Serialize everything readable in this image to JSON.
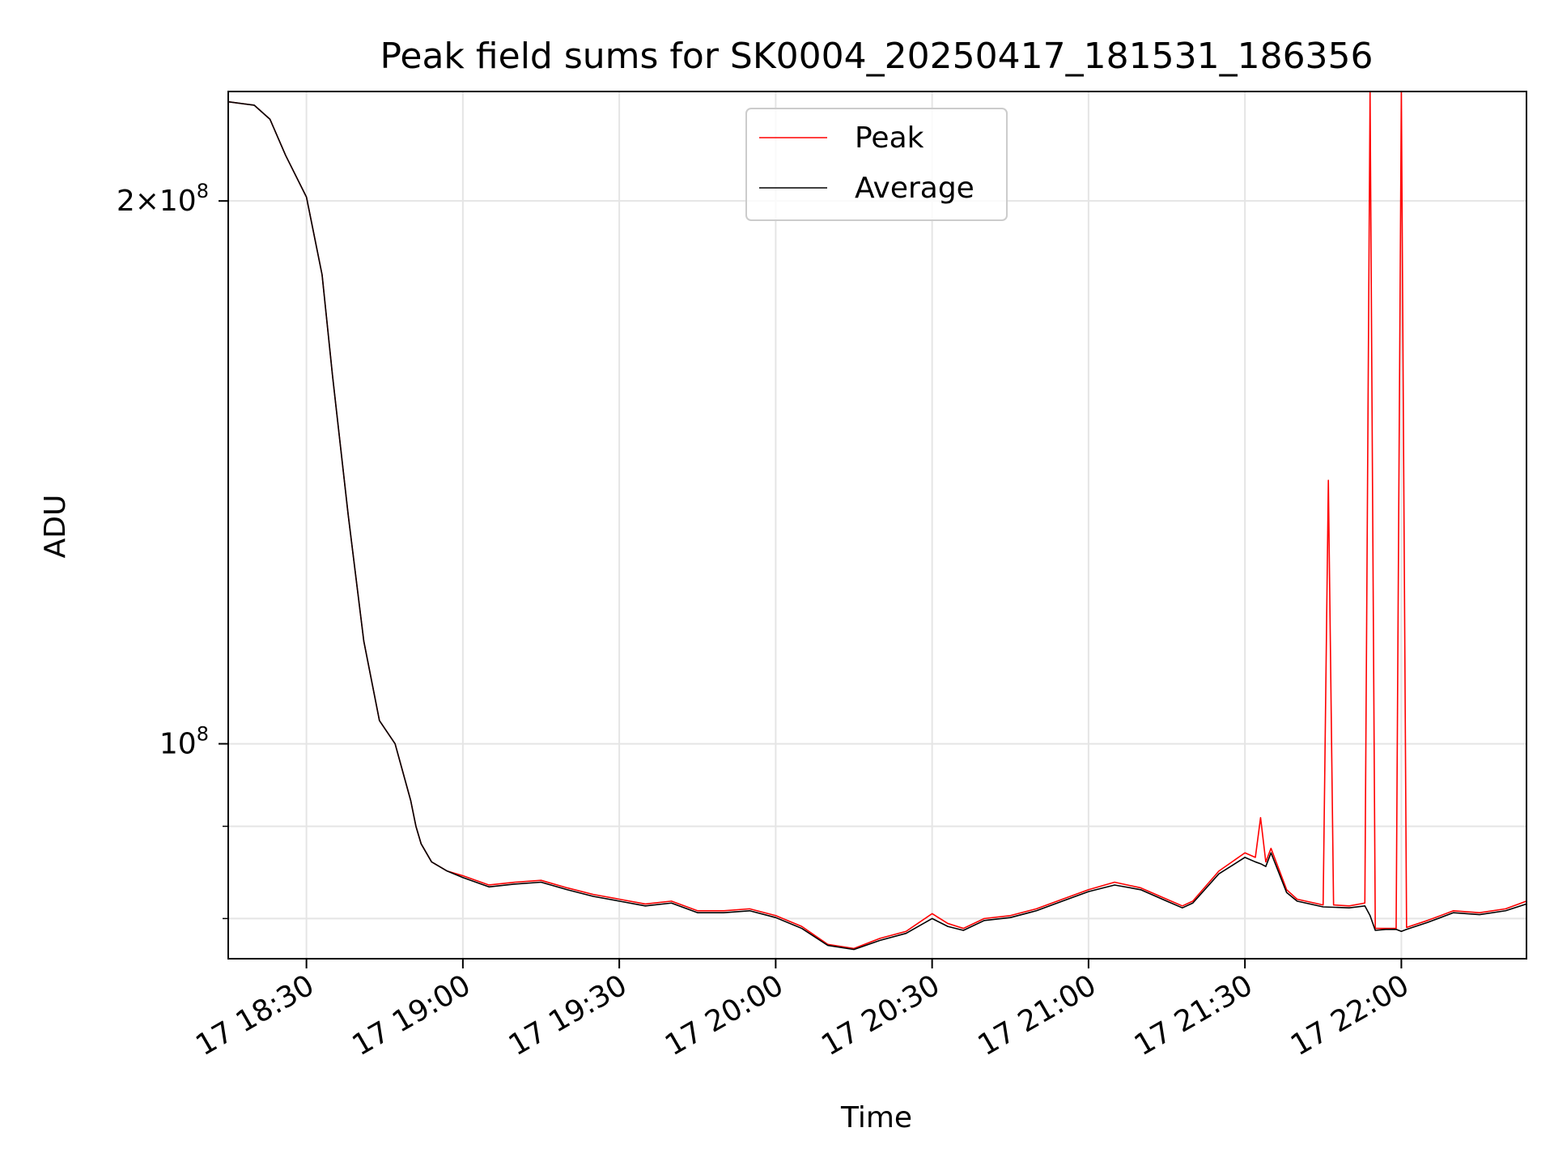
{
  "chart_data": {
    "type": "line",
    "title": "Peak field sums for SK0004_20250417_181531_186356",
    "xlabel": "Time",
    "ylabel": "ADU",
    "y_scale": "log",
    "grid": true,
    "legend_placement": "upper center",
    "xlim": [
      "2025-04-17 18:15",
      "2025-04-17 22:24"
    ],
    "ylim": [
      76000000,
      230000000
    ],
    "x_ticks": [
      "17 18:30",
      "17 19:00",
      "17 19:30",
      "17 20:00",
      "17 20:30",
      "17 21:00",
      "17 21:30",
      "17 22:00"
    ],
    "y_ticks": [
      {
        "value": 100000000,
        "label": "10^8"
      },
      {
        "value": 200000000,
        "label": "2×10^8"
      }
    ],
    "y_minor_ticks": [
      80000000,
      90000000
    ],
    "colors": {
      "Peak": "#ff0000",
      "Average": "#000000"
    },
    "series": [
      {
        "name": "Peak",
        "x": [
          "18:15",
          "18:20",
          "18:23",
          "18:26",
          "18:30",
          "18:33",
          "18:35",
          "18:38",
          "18:41",
          "18:44",
          "18:47",
          "18:50",
          "18:51",
          "18:52",
          "18:54",
          "18:57",
          "19:00",
          "19:05",
          "19:10",
          "19:15",
          "19:20",
          "19:25",
          "19:30",
          "19:35",
          "19:40",
          "19:45",
          "19:50",
          "19:55",
          "20:00",
          "20:05",
          "20:10",
          "20:15",
          "20:20",
          "20:25",
          "20:30",
          "20:33",
          "20:36",
          "20:40",
          "20:45",
          "20:50",
          "20:55",
          "21:00",
          "21:05",
          "21:10",
          "21:15",
          "21:18",
          "21:20",
          "21:25",
          "21:30",
          "21:32",
          "21:33",
          "21:34",
          "21:35",
          "21:38",
          "21:40",
          "21:45",
          "21:46",
          "21:47",
          "21:50",
          "21:53",
          "21:54",
          "21:55",
          "21:56",
          "21:57",
          "21:59",
          "22:00",
          "22:01",
          "22:05",
          "22:10",
          "22:15",
          "22:20",
          "22:24"
        ],
        "y": [
          227000000,
          226000000,
          222000000,
          212000000,
          201000000,
          182000000,
          160000000,
          134000000,
          114000000,
          103000000,
          100000000,
          93000000,
          90000000,
          88000000,
          86000000,
          85000000,
          84500000,
          83500000,
          83800000,
          84000000,
          83200000,
          82500000,
          82000000,
          81500000,
          81800000,
          80800000,
          80800000,
          81000000,
          80300000,
          79200000,
          77400000,
          77000000,
          78000000,
          78700000,
          80500000,
          79500000,
          79000000,
          80000000,
          80300000,
          81000000,
          82000000,
          83000000,
          83800000,
          83200000,
          82000000,
          81300000,
          81800000,
          85000000,
          87000000,
          86500000,
          91000000,
          86000000,
          87500000,
          83000000,
          82000000,
          81400000,
          140000000,
          81400000,
          81300000,
          81600000,
          230000000,
          79000000,
          79000000,
          79000000,
          79000000,
          230000000,
          79100000,
          79800000,
          80800000,
          80600000,
          81000000,
          81800000
        ],
        "linewidth": 1
      },
      {
        "name": "Average",
        "x": [
          "18:15",
          "18:20",
          "18:23",
          "18:26",
          "18:30",
          "18:33",
          "18:35",
          "18:38",
          "18:41",
          "18:44",
          "18:47",
          "18:50",
          "18:51",
          "18:52",
          "18:54",
          "18:57",
          "19:00",
          "19:05",
          "19:10",
          "19:15",
          "19:20",
          "19:25",
          "19:30",
          "19:35",
          "19:40",
          "19:45",
          "19:50",
          "19:55",
          "20:00",
          "20:05",
          "20:10",
          "20:15",
          "20:20",
          "20:25",
          "20:30",
          "20:33",
          "20:36",
          "20:40",
          "20:45",
          "20:50",
          "20:55",
          "21:00",
          "21:05",
          "21:10",
          "21:15",
          "21:18",
          "21:20",
          "21:25",
          "21:30",
          "21:32",
          "21:33",
          "21:34",
          "21:35",
          "21:38",
          "21:40",
          "21:45",
          "21:50",
          "21:53",
          "21:54",
          "21:55",
          "21:57",
          "21:59",
          "22:00",
          "22:01",
          "22:05",
          "22:10",
          "22:15",
          "22:20",
          "22:24"
        ],
        "y": [
          227000000,
          226000000,
          222000000,
          212000000,
          201000000,
          182000000,
          160000000,
          134000000,
          114000000,
          103000000,
          100000000,
          93000000,
          90000000,
          88000000,
          86000000,
          85000000,
          84300000,
          83300000,
          83600000,
          83800000,
          83000000,
          82300000,
          81800000,
          81300000,
          81600000,
          80600000,
          80600000,
          80800000,
          80100000,
          79000000,
          77300000,
          76900000,
          77800000,
          78500000,
          80000000,
          79200000,
          78800000,
          79800000,
          80100000,
          80800000,
          81800000,
          82800000,
          83500000,
          83000000,
          81800000,
          81100000,
          81600000,
          84700000,
          86500000,
          86000000,
          85800000,
          85500000,
          87000000,
          82700000,
          81800000,
          81200000,
          81100000,
          81300000,
          80300000,
          78800000,
          78900000,
          78900000,
          78700000,
          78900000,
          79600000,
          80600000,
          80400000,
          80800000,
          81500000
        ],
        "linewidth": 1
      }
    ]
  }
}
